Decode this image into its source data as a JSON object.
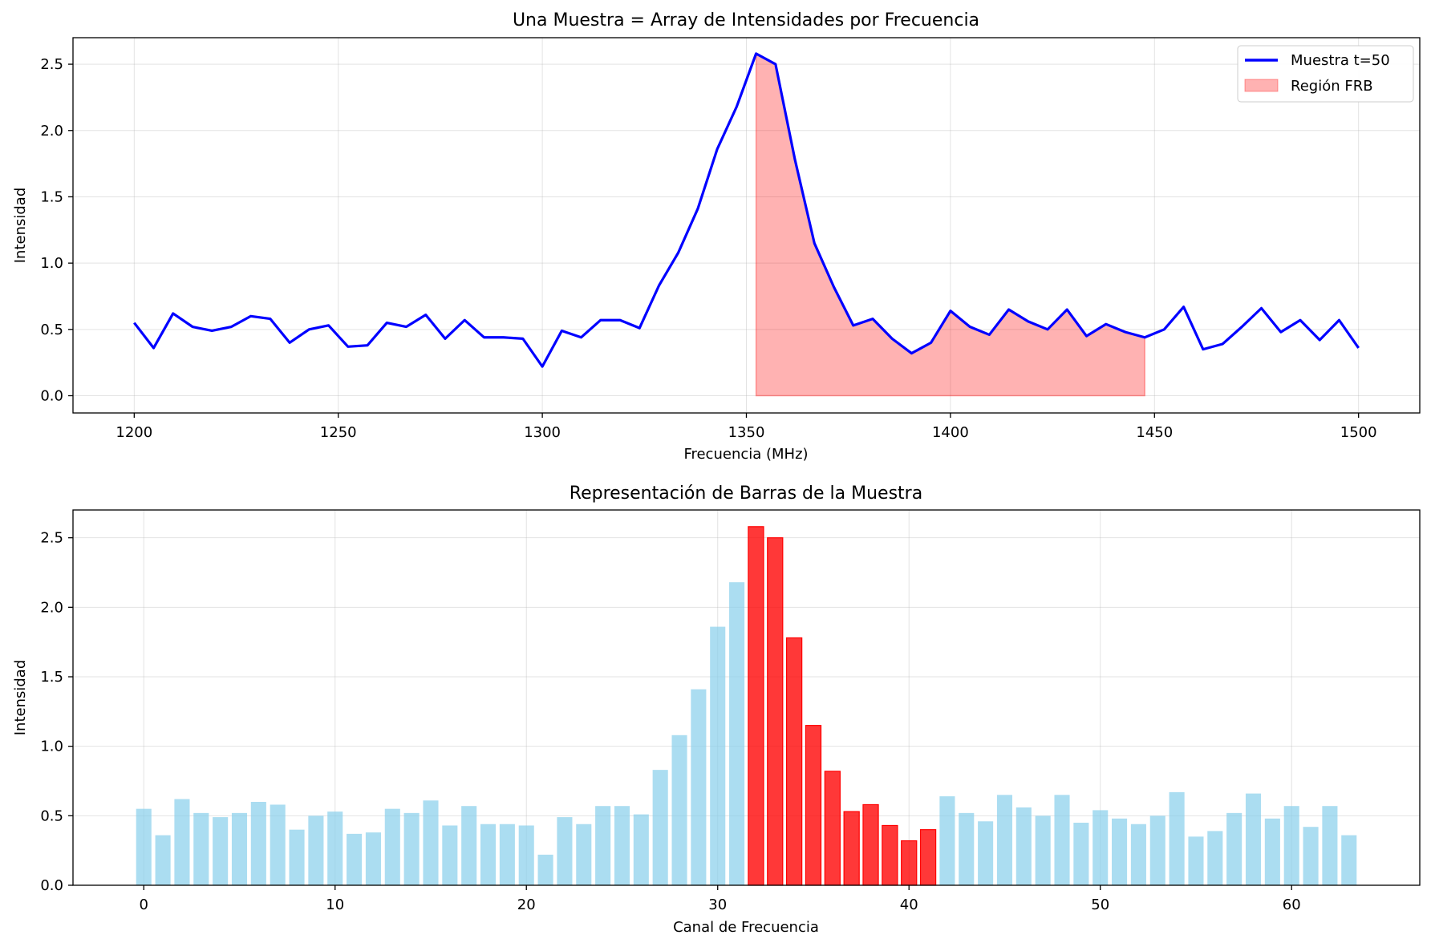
{
  "chart_data": [
    {
      "type": "line",
      "title": "Una Muestra = Array de Intensidades por Frecuencia",
      "xlabel": "Frecuencia (MHz)",
      "ylabel": "Intensidad",
      "xlim": [
        1185,
        1515
      ],
      "ylim": [
        -0.13,
        2.7
      ],
      "xticks": [
        1200,
        1250,
        1300,
        1350,
        1400,
        1450,
        1500
      ],
      "yticks": [
        0.0,
        0.5,
        1.0,
        1.5,
        2.0,
        2.5
      ],
      "grid": true,
      "legend": {
        "position": "top-right",
        "entries": [
          "Muestra t=50",
          "Región FRB"
        ]
      },
      "series": [
        {
          "name": "Muestra t=50",
          "kind": "line",
          "color": "#0000ff",
          "x_start": 1200,
          "x_end": 1500,
          "values": [
            0.55,
            0.36,
            0.62,
            0.52,
            0.49,
            0.52,
            0.6,
            0.58,
            0.4,
            0.5,
            0.53,
            0.37,
            0.38,
            0.55,
            0.52,
            0.61,
            0.43,
            0.57,
            0.44,
            0.44,
            0.43,
            0.22,
            0.49,
            0.44,
            0.57,
            0.57,
            0.51,
            0.83,
            1.08,
            1.41,
            1.86,
            2.18,
            2.58,
            2.5,
            1.78,
            1.15,
            0.82,
            0.53,
            0.58,
            0.43,
            0.32,
            0.4,
            0.64,
            0.52,
            0.46,
            0.65,
            0.56,
            0.5,
            0.65,
            0.45,
            0.54,
            0.48,
            0.44,
            0.5,
            0.67,
            0.35,
            0.39,
            0.52,
            0.66,
            0.48,
            0.57,
            0.42,
            0.57,
            0.36
          ]
        },
        {
          "name": "Región FRB",
          "kind": "area",
          "color": "#ff0000",
          "channel_range": [
            32,
            52
          ]
        }
      ]
    },
    {
      "type": "bar",
      "title": "Representación de Barras de la Muestra",
      "xlabel": "Canal de Frecuencia",
      "ylabel": "Intensidad",
      "xlim": [
        -3.7,
        66.7
      ],
      "ylim": [
        0,
        2.7
      ],
      "xticks": [
        0,
        10,
        20,
        30,
        40,
        50,
        60
      ],
      "yticks": [
        0.0,
        0.5,
        1.0,
        1.5,
        2.0,
        2.5
      ],
      "grid": true,
      "bar_color": "#87ceeb",
      "highlight_color": "#ff0000",
      "highlight_range": [
        32,
        41
      ]
    }
  ]
}
